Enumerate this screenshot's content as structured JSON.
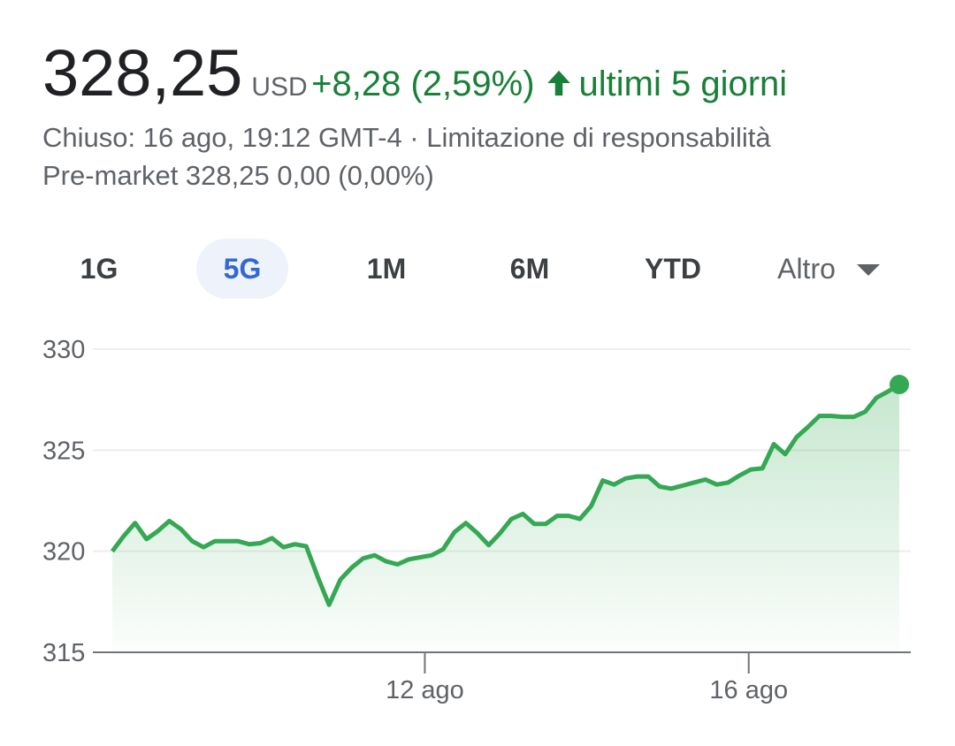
{
  "header": {
    "price": "328,25",
    "currency": "USD",
    "change": "+8,28 (2,59%)",
    "period": "ultimi 5 giorni",
    "status": "Chiuso: 16 ago, 19:12 GMT-4 · Limitazione di responsabilità",
    "premarket": "Pre-market 328,25 0,00 (0,00%)"
  },
  "tabs": [
    "1G",
    "5G",
    "1M",
    "6M",
    "YTD",
    "Altro"
  ],
  "selected_tab": 1,
  "chart_data": {
    "type": "line",
    "color": "#34a853",
    "values": [
      320.0,
      320.75,
      321.4,
      320.6,
      321.0,
      321.5,
      321.1,
      320.5,
      320.2,
      320.5,
      320.5,
      320.5,
      320.35,
      320.4,
      320.65,
      320.2,
      320.35,
      320.25,
      318.75,
      317.35,
      318.6,
      319.2,
      319.65,
      319.8,
      319.5,
      319.35,
      319.6,
      319.7,
      319.8,
      320.1,
      320.95,
      321.4,
      320.9,
      320.3,
      320.9,
      321.6,
      321.85,
      321.35,
      321.35,
      321.75,
      321.75,
      321.6,
      322.25,
      323.5,
      323.3,
      323.6,
      323.7,
      323.7,
      323.2,
      323.1,
      323.25,
      323.4,
      323.55,
      323.3,
      323.4,
      323.75,
      324.05,
      324.1,
      325.3,
      324.8,
      325.65,
      326.15,
      326.7,
      326.7,
      326.65,
      326.65,
      326.9,
      327.6,
      327.9,
      328.25
    ],
    "xlim": [
      0,
      69
    ],
    "xticks": [
      {
        "value": 27.4,
        "label": "12 ago"
      },
      {
        "value": 55.8,
        "label": "16 ago"
      }
    ],
    "ylim": [
      315,
      330
    ],
    "yticks": [
      315,
      320,
      325,
      330
    ],
    "grid": true
  }
}
